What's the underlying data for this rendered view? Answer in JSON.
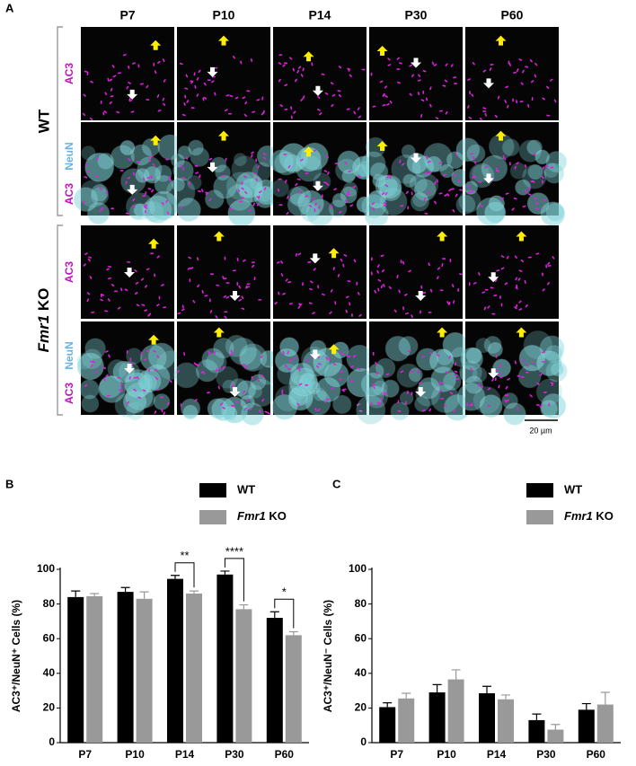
{
  "figure": {
    "panel_labels": [
      "A",
      "B",
      "C"
    ],
    "columns": [
      "P7",
      "P10",
      "P14",
      "P30",
      "P60"
    ],
    "groups": [
      "WT",
      "Fmr1 KO"
    ],
    "stains": {
      "ac3": "AC3",
      "neun": "NeuN"
    },
    "scale_bar": "20 µm"
  },
  "chart_data": [
    {
      "type": "bar",
      "categories": [
        "P7",
        "P10",
        "P14",
        "P30",
        "P60"
      ],
      "ylabel": "AC3⁺/NeuN⁺ Cells (%)",
      "ylim": [
        0,
        100
      ],
      "yticks": [
        0,
        20,
        40,
        60,
        80,
        100
      ],
      "legend": "top-right",
      "series": [
        {
          "name": "WT",
          "color": "#000000",
          "values": [
            84,
            87,
            94.5,
            97,
            72
          ],
          "errors": [
            3.5,
            2.5,
            2,
            2,
            3.5
          ]
        },
        {
          "name": "Fmr1 KO",
          "color": "#999999",
          "values": [
            84.5,
            83,
            86,
            77,
            62
          ],
          "errors": [
            1.5,
            4,
            1.5,
            2.5,
            2
          ]
        }
      ],
      "annotations": [
        {
          "text": "**",
          "x": "P14"
        },
        {
          "text": "****",
          "x": "P30"
        },
        {
          "text": "*",
          "x": "P60"
        }
      ]
    },
    {
      "type": "bar",
      "categories": [
        "P7",
        "P10",
        "P14",
        "P30",
        "P60"
      ],
      "ylabel": "AC3⁺/NeuN⁻ Cells (%)",
      "ylim": [
        0,
        100
      ],
      "yticks": [
        0,
        20,
        40,
        60,
        80,
        100
      ],
      "legend": "top-right",
      "series": [
        {
          "name": "WT",
          "color": "#000000",
          "values": [
            20.5,
            29,
            28.5,
            13,
            19
          ],
          "errors": [
            2.5,
            4.5,
            4,
            3.5,
            3.5
          ]
        },
        {
          "name": "Fmr1 KO",
          "color": "#999999",
          "values": [
            25.5,
            36.5,
            25,
            7.5,
            22
          ],
          "errors": [
            3,
            5.5,
            2.5,
            3,
            7
          ]
        }
      ]
    }
  ]
}
